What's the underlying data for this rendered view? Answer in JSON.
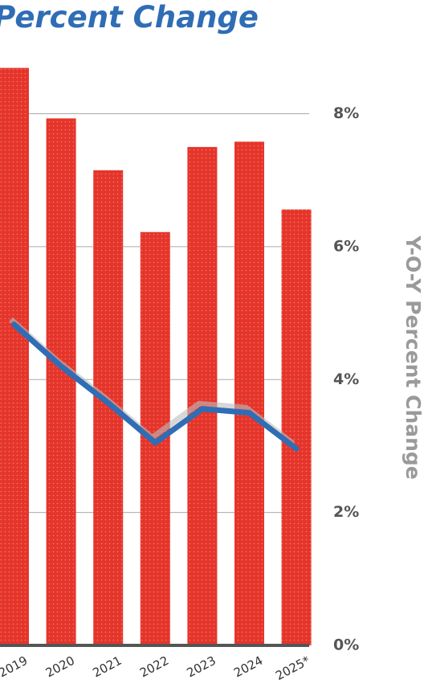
{
  "chart_data": {
    "type": "combo",
    "title": "Percent Change",
    "y_label": "Y-O-Y Percent Change",
    "categories": [
      "2019",
      "2020",
      "2021",
      "2022",
      "2023",
      "2024",
      "2025*"
    ],
    "series": [
      {
        "type": "bar",
        "color": "#e5352b",
        "values": [
          8.69,
          7.93,
          7.15,
          6.22,
          7.5,
          7.58,
          6.56
        ]
      },
      {
        "type": "line",
        "color": "#2f6db5",
        "values": [
          4.83,
          4.2,
          3.65,
          3.05,
          3.56,
          3.5,
          2.96
        ]
      }
    ],
    "ylim": [
      0,
      9.7
    ],
    "yticks": [
      {
        "value": 0,
        "label": "0%"
      },
      {
        "value": 2,
        "label": "2%"
      },
      {
        "value": 4,
        "label": "4%"
      },
      {
        "value": 6,
        "label": "6%"
      },
      {
        "value": 8,
        "label": "8%"
      }
    ],
    "grid": true
  }
}
